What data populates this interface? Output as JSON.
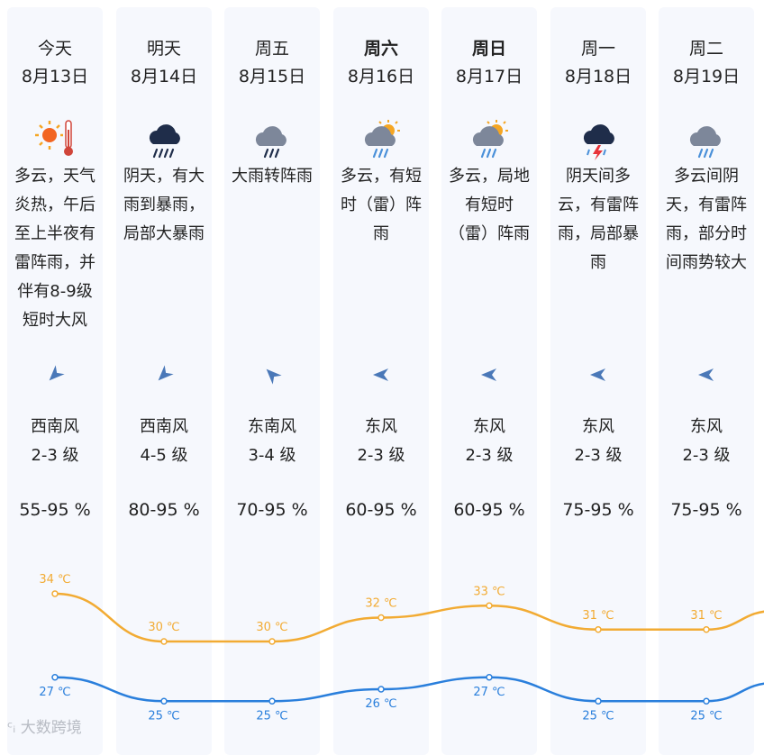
{
  "days": [
    {
      "name": "今天",
      "bold": false,
      "date": "8月13日",
      "icon": "sunny-hot-icon",
      "desc": "多云，天气炎热，午后至上半夜有雷阵雨，并伴有8-9级短时大风",
      "wind_rot": 225,
      "wind_dir": "西南风",
      "wind_level": "2-3 级",
      "humidity": "55-95 %",
      "high": "34 ℃",
      "low": "27 ℃"
    },
    {
      "name": "明天",
      "bold": false,
      "date": "8月14日",
      "icon": "heavy-rain-icon",
      "desc": "阴天，有大雨到暴雨，局部大暴雨",
      "wind_rot": 225,
      "wind_dir": "西南风",
      "wind_level": "4-5 级",
      "humidity": "80-95 %",
      "high": "30 ℃",
      "low": "25 ℃"
    },
    {
      "name": "周五",
      "bold": false,
      "date": "8月15日",
      "icon": "rain-icon",
      "desc": "大雨转阵雨",
      "wind_rot": 315,
      "wind_dir": "东南风",
      "wind_level": "3-4 级",
      "humidity": "70-95 %",
      "high": "30 ℃",
      "low": "25 ℃"
    },
    {
      "name": "周六",
      "bold": true,
      "date": "8月16日",
      "icon": "sun-cloud-rain-icon",
      "desc": "多云，有短时（雷）阵雨",
      "wind_rot": 270,
      "wind_dir": "东风",
      "wind_level": "2-3 级",
      "humidity": "60-95 %",
      "high": "32 ℃",
      "low": "26 ℃"
    },
    {
      "name": "周日",
      "bold": true,
      "date": "8月17日",
      "icon": "sun-cloud-rain-icon",
      "desc": "多云，局地有短时（雷）阵雨",
      "wind_rot": 270,
      "wind_dir": "东风",
      "wind_level": "2-3 级",
      "humidity": "60-95 %",
      "high": "33 ℃",
      "low": "27 ℃"
    },
    {
      "name": "周一",
      "bold": false,
      "date": "8月18日",
      "icon": "thunderstorm-icon",
      "desc": "阴天间多云，有雷阵雨，局部暴雨",
      "wind_rot": 270,
      "wind_dir": "东风",
      "wind_level": "2-3 级",
      "humidity": "75-95 %",
      "high": "31 ℃",
      "low": "25 ℃"
    },
    {
      "name": "周二",
      "bold": false,
      "date": "8月19日",
      "icon": "light-rain-icon",
      "desc": "多云间阴天，有雷阵雨，部分时间雨势较大",
      "wind_rot": 270,
      "wind_dir": "东风",
      "wind_level": "2-3 级",
      "humidity": "75-95 %",
      "high": "31 ℃",
      "low": "25 ℃"
    }
  ],
  "temps": {
    "high_values": [
      34,
      30,
      30,
      32,
      33,
      31,
      31
    ],
    "low_values": [
      27,
      25,
      25,
      26,
      27,
      25,
      25
    ],
    "high_color": "#f2ab33",
    "low_color": "#2a7fdc"
  },
  "watermark": "大数跨境"
}
